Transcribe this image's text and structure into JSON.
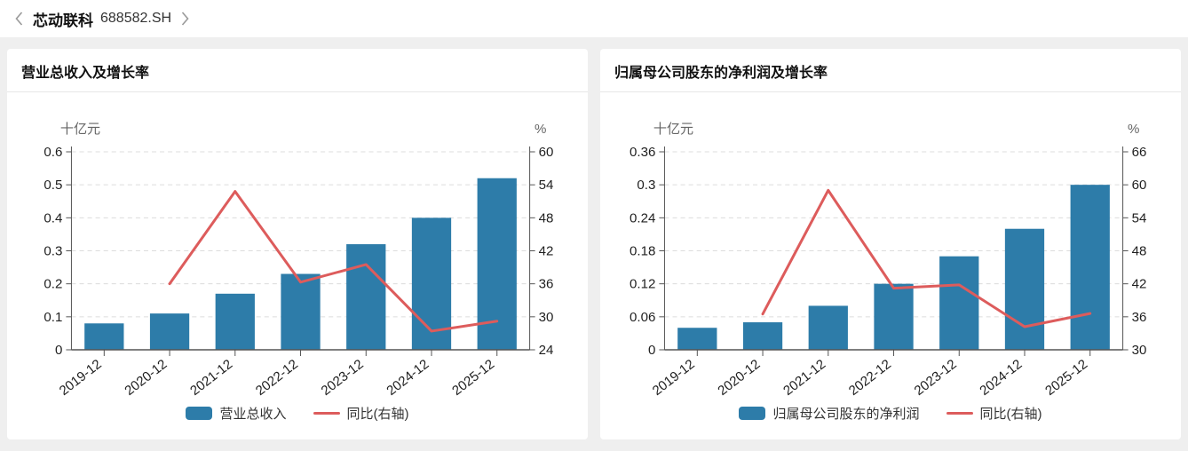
{
  "header": {
    "company": "芯动联科",
    "code": "688582.SH",
    "back_icon": "chevron-left",
    "forward_icon": "chevron-right"
  },
  "colors": {
    "bar": "#2d7ca9",
    "line": "#dd5c5c",
    "grid": "#dcdcdc",
    "axis": "#555555",
    "tick_label": "#1f1f1f",
    "axis_name": "#666666",
    "page_bg": "#efefef",
    "panel_bg": "#ffffff"
  },
  "chart_data": [
    {
      "type": "bar+line",
      "title": "营业总收入及增长率",
      "unit_left": "十亿元",
      "unit_right": "%",
      "categories": [
        "2019-12",
        "2020-12",
        "2021-12",
        "2022-12",
        "2023-12",
        "2024-12",
        "2025-12"
      ],
      "bar_series": {
        "name": "营业总收入",
        "axis": "left",
        "values": [
          0.08,
          0.11,
          0.17,
          0.23,
          0.32,
          0.4,
          0.52
        ]
      },
      "line_series": {
        "name": "同比(右轴)",
        "axis": "right",
        "values": [
          null,
          36.0,
          52.8,
          36.3,
          39.5,
          27.4,
          29.2
        ]
      },
      "y_left": {
        "min": 0,
        "max": 0.6,
        "step": 0.1
      },
      "y_right": {
        "min": 24,
        "max": 60,
        "step": 6
      },
      "grid": "dashed-horizontal",
      "legend_position": "bottom"
    },
    {
      "type": "bar+line",
      "title": "归属母公司股东的净利润及增长率",
      "unit_left": "十亿元",
      "unit_right": "%",
      "categories": [
        "2019-12",
        "2020-12",
        "2021-12",
        "2022-12",
        "2023-12",
        "2024-12",
        "2025-12"
      ],
      "bar_series": {
        "name": "归属母公司股东的净利润",
        "axis": "left",
        "values": [
          0.04,
          0.05,
          0.08,
          0.12,
          0.17,
          0.22,
          0.3
        ]
      },
      "line_series": {
        "name": "同比(右轴)",
        "axis": "right",
        "values": [
          null,
          36.5,
          59.0,
          41.2,
          41.8,
          34.2,
          36.6
        ]
      },
      "y_left": {
        "min": 0,
        "max": 0.36,
        "step": 0.06
      },
      "y_right": {
        "min": 30,
        "max": 66,
        "step": 6
      },
      "grid": "dashed-horizontal",
      "legend_position": "bottom"
    }
  ]
}
